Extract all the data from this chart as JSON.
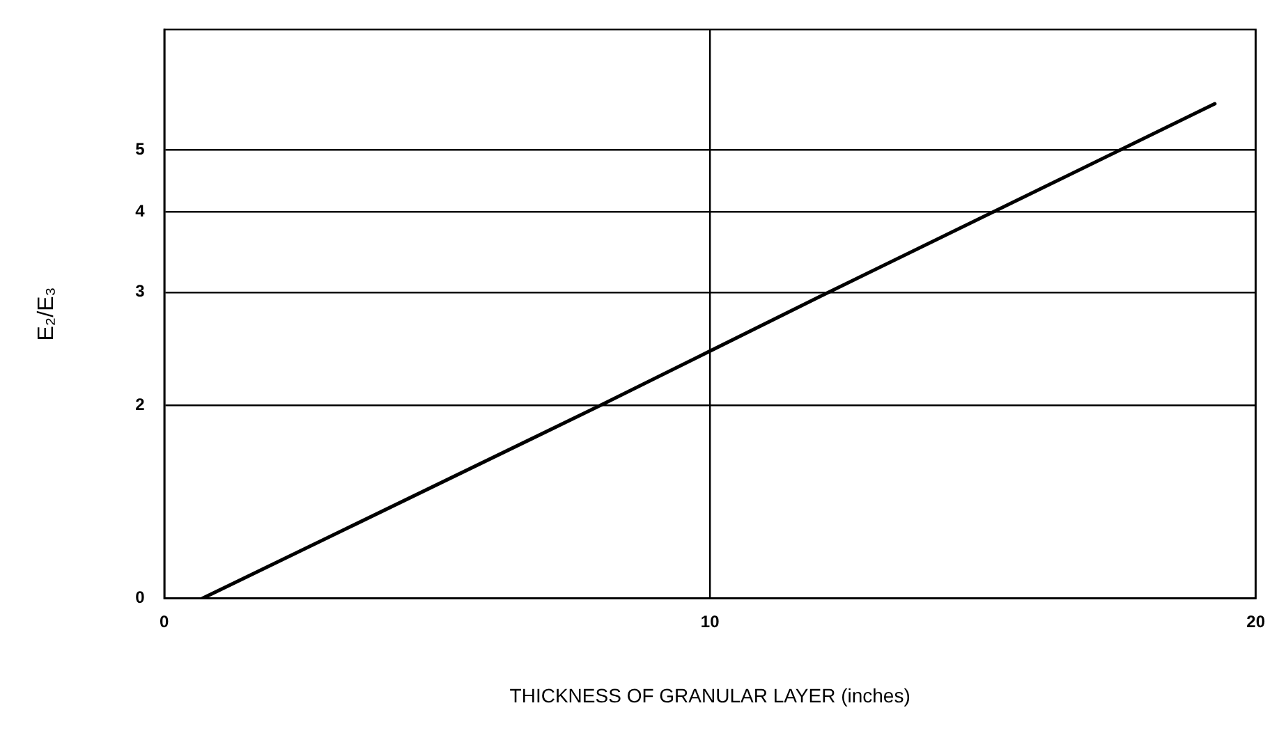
{
  "chart_data": {
    "type": "line",
    "xlabel": "THICKNESS OF GRANULAR LAYER (inches)",
    "ylabel": "E₂/E₃",
    "x": [
      0.7,
      8,
      12,
      19.25
    ],
    "series": [
      {
        "color": "#000000",
        "values": [
          1,
          2,
          2.95,
          5.9
        ]
      }
    ],
    "xlim": [
      0,
      20
    ],
    "xticks": [
      0,
      10,
      20
    ],
    "ylim": [
      0,
      7.7
    ],
    "yticks": [
      0,
      2,
      3,
      4,
      5
    ],
    "log": "y",
    "grid": true,
    "legend": false,
    "marker": "none",
    "line_style": "solid"
  }
}
